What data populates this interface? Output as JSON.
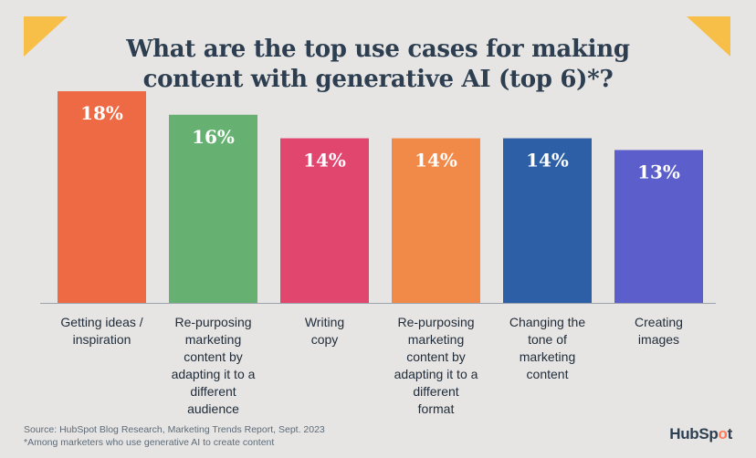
{
  "title": "What are the top use cases for making content with generative AI (top 6)*?",
  "chart_data": {
    "type": "bar",
    "categories": [
      "Getting ideas / inspiration",
      "Re-purposing marketing content by adapting it to a different audience",
      "Writing copy",
      "Re-purposing marketing content by adapting it to a different format",
      "Changing the tone of marketing content",
      "Creating images"
    ],
    "category_lines": [
      [
        "Getting ideas /",
        "inspiration"
      ],
      [
        "Re-purposing",
        "marketing",
        "content by",
        "adapting it to a",
        "different",
        "audience"
      ],
      [
        "Writing",
        "copy"
      ],
      [
        "Re-purposing",
        "marketing",
        "content by",
        "adapting it to a",
        "different",
        "format"
      ],
      [
        "Changing the",
        "tone of",
        "marketing",
        "content"
      ],
      [
        "Creating",
        "images"
      ]
    ],
    "values": [
      18,
      16,
      14,
      14,
      14,
      13
    ],
    "value_labels": [
      "18%",
      "16%",
      "14%",
      "14%",
      "14%",
      "13%"
    ],
    "colors": [
      "#ee6a45",
      "#66b172",
      "#e1466f",
      "#f18a48",
      "#2c5fa5",
      "#5b5ecb"
    ],
    "unit": "%",
    "ylim": [
      0,
      18
    ],
    "grid": false,
    "legend": "none"
  },
  "footer": {
    "source": "Source: HubSpot Blog Research, Marketing Trends Report, Sept. 2023",
    "note": "*Among marketers who use generative AI to create content"
  },
  "logo_text": "HubSpot",
  "colors": {
    "accent_corner": "#f7bf47",
    "title": "#2d3e50",
    "baseline": "#9aa3ad"
  }
}
